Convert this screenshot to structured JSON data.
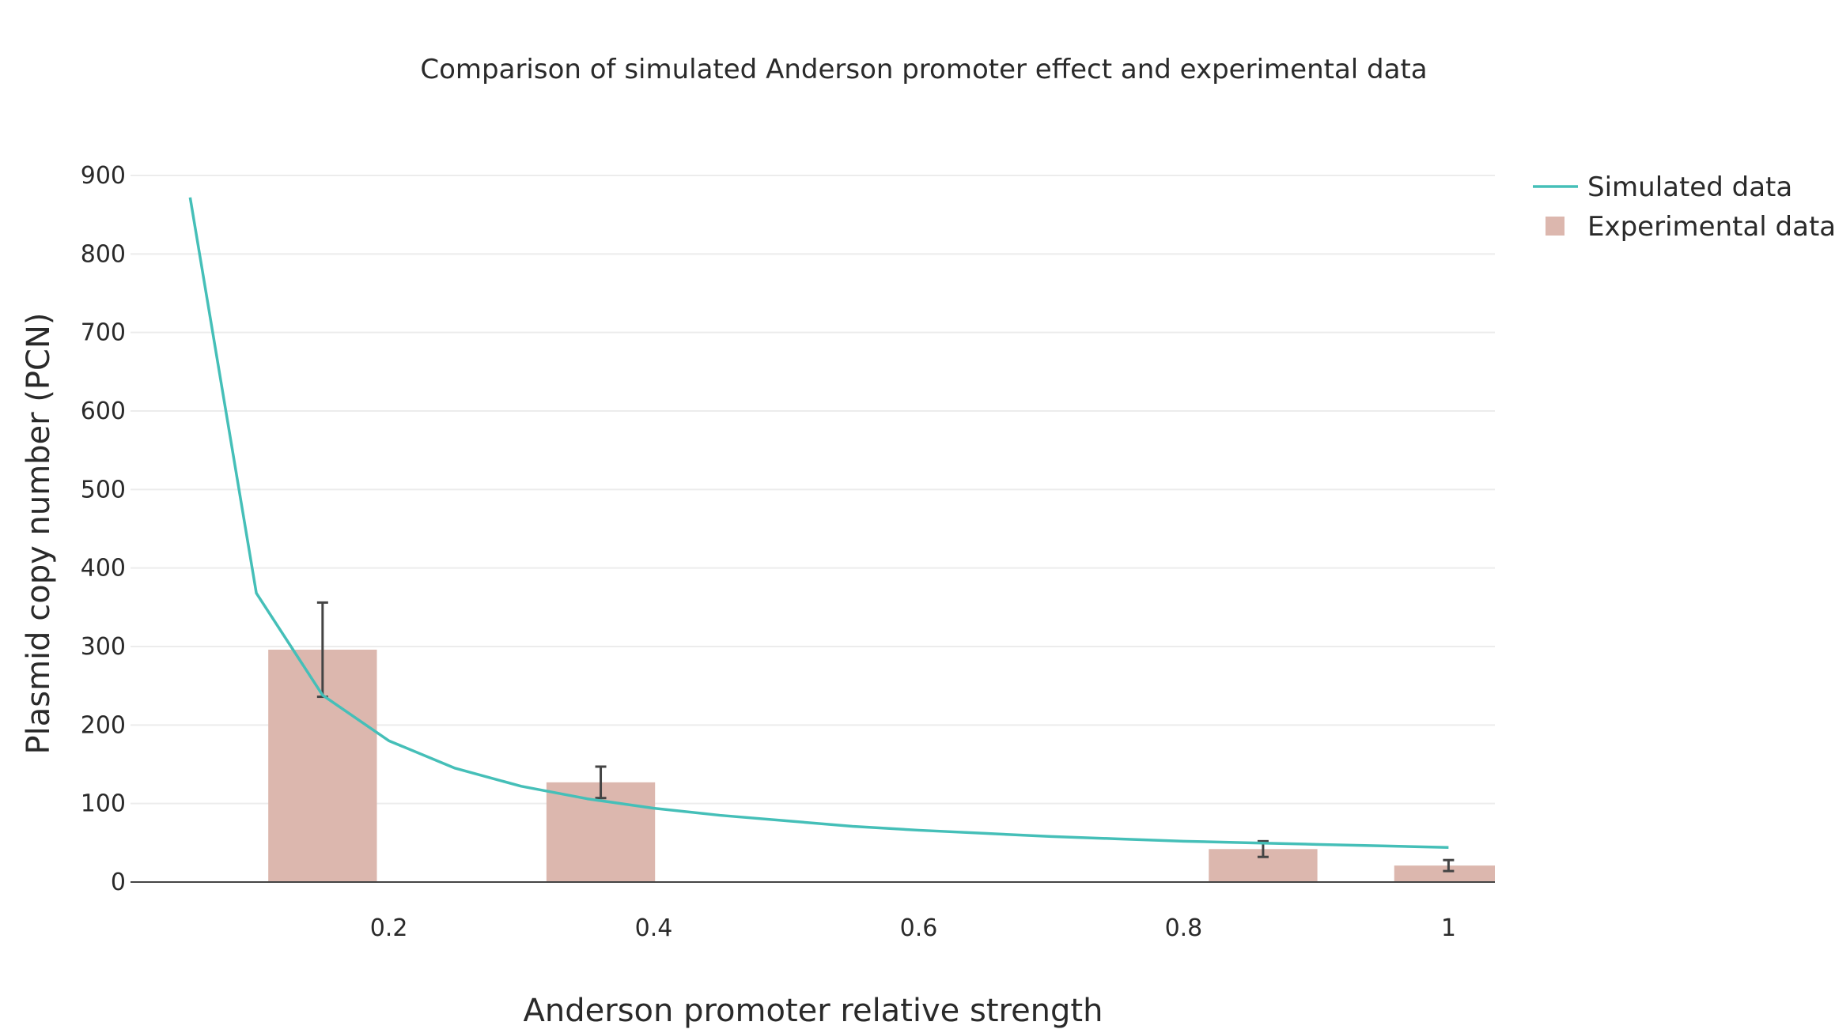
{
  "chart_data": {
    "type": "bar",
    "title": "Comparison of simulated Anderson promoter effect and experimental data",
    "xlabel": "Anderson promoter relative strength",
    "ylabel": "Plasmid copy number (PCN)",
    "xlim": [
      0.005,
      1.035
    ],
    "ylim": [
      0,
      900
    ],
    "xticks": [
      0.2,
      0.4,
      0.6,
      0.8,
      1
    ],
    "xtick_labels": [
      "0.2",
      "0.4",
      "0.6",
      "0.8",
      "1"
    ],
    "yticks": [
      0,
      100,
      200,
      300,
      400,
      500,
      600,
      700,
      800,
      900
    ],
    "ytick_labels": [
      "0",
      "100",
      "200",
      "300",
      "400",
      "500",
      "600",
      "700",
      "800",
      "900"
    ],
    "grid": true,
    "legend_position": "top-right",
    "series": [
      {
        "name": "Simulated data",
        "type": "line",
        "color": "#45bfb8",
        "x": [
          0.05,
          0.1,
          0.15,
          0.2,
          0.25,
          0.3,
          0.35,
          0.4,
          0.45,
          0.5,
          0.55,
          0.6,
          0.65,
          0.7,
          0.75,
          0.8,
          0.85,
          0.9,
          0.95,
          1.0
        ],
        "y": [
          872,
          368,
          238,
          180,
          145,
          122,
          106,
          94,
          85,
          78,
          71,
          66,
          62,
          58,
          55,
          52,
          50,
          48,
          46,
          44
        ]
      },
      {
        "name": "Experimental data",
        "type": "bar",
        "color": "#dcb7ae",
        "x": [
          0.15,
          0.36,
          0.86,
          1.0
        ],
        "y": [
          296,
          127,
          42,
          21
        ],
        "error": [
          60,
          20,
          10,
          7
        ],
        "bar_width": 0.082
      }
    ]
  }
}
